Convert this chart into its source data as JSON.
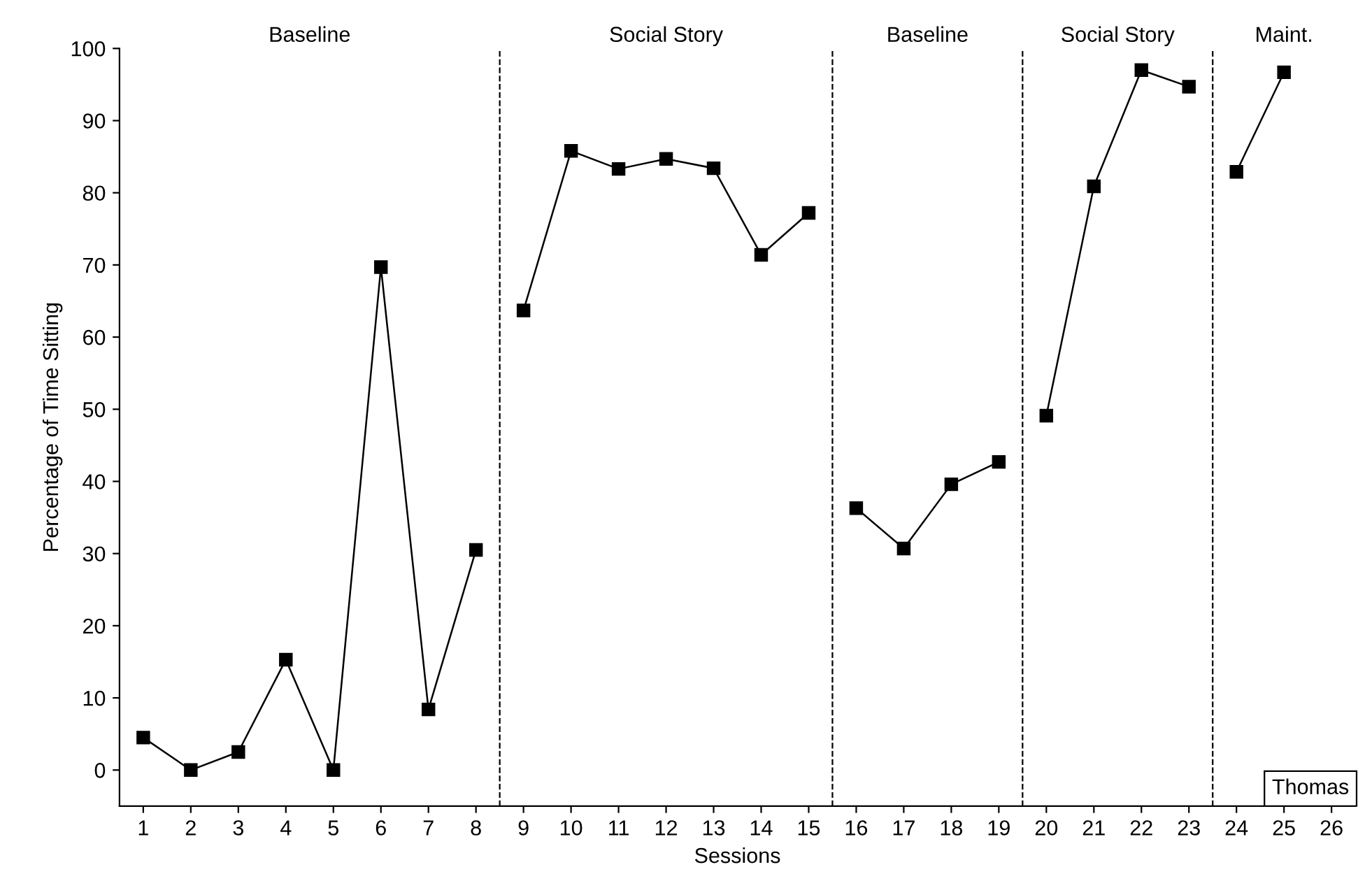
{
  "chart_data": {
    "type": "line",
    "xlabel": "Sessions",
    "ylabel": "Percentage of Time Sitting",
    "xlim": [
      0.5,
      26.5
    ],
    "xticks": [
      1,
      2,
      3,
      4,
      5,
      6,
      7,
      8,
      9,
      10,
      11,
      12,
      13,
      14,
      15,
      16,
      17,
      18,
      19,
      20,
      21,
      22,
      23,
      24,
      25,
      26
    ],
    "ylim": [
      -5,
      100
    ],
    "yticks": [
      0,
      10,
      20,
      30,
      40,
      50,
      60,
      70,
      80,
      90,
      100
    ],
    "series": [
      {
        "color": "#000000",
        "x": [
          1,
          2,
          3,
          4,
          5,
          6,
          7,
          8
        ],
        "values": [
          4.5,
          0,
          2.5,
          15.3,
          0,
          69.7,
          8.4,
          30.5
        ]
      },
      {
        "color": "#000000",
        "x": [
          9,
          10,
          11,
          12,
          13,
          14,
          15
        ],
        "values": [
          63.7,
          85.8,
          83.3,
          84.7,
          83.4,
          71.4,
          77.2
        ]
      },
      {
        "color": "#000000",
        "x": [
          16,
          17,
          18,
          19
        ],
        "values": [
          36.3,
          30.7,
          39.6,
          42.7
        ]
      },
      {
        "color": "#000000",
        "x": [
          20,
          21,
          22,
          23
        ],
        "values": [
          49.1,
          80.9,
          97,
          94.7
        ]
      },
      {
        "color": "#000000",
        "x": [
          24,
          25
        ],
        "values": [
          82.9,
          96.7
        ]
      }
    ],
    "ref_lines": [
      {
        "axis": "x",
        "value": 8.5,
        "line_style": "dashed",
        "color": "#000000"
      },
      {
        "axis": "x",
        "value": 15.5,
        "line_style": "dashed",
        "color": "#000000"
      },
      {
        "axis": "x",
        "value": 19.5,
        "line_style": "dashed",
        "color": "#000000"
      },
      {
        "axis": "x",
        "value": 23.5,
        "line_style": "dashed",
        "color": "#000000"
      }
    ],
    "annotations": [
      "Baseline",
      "Social Story",
      "Baseline",
      "Social Story",
      "Maint.",
      "Thomas"
    ],
    "marker": "square",
    "line_style": "solid",
    "grid": false,
    "legend": false
  }
}
